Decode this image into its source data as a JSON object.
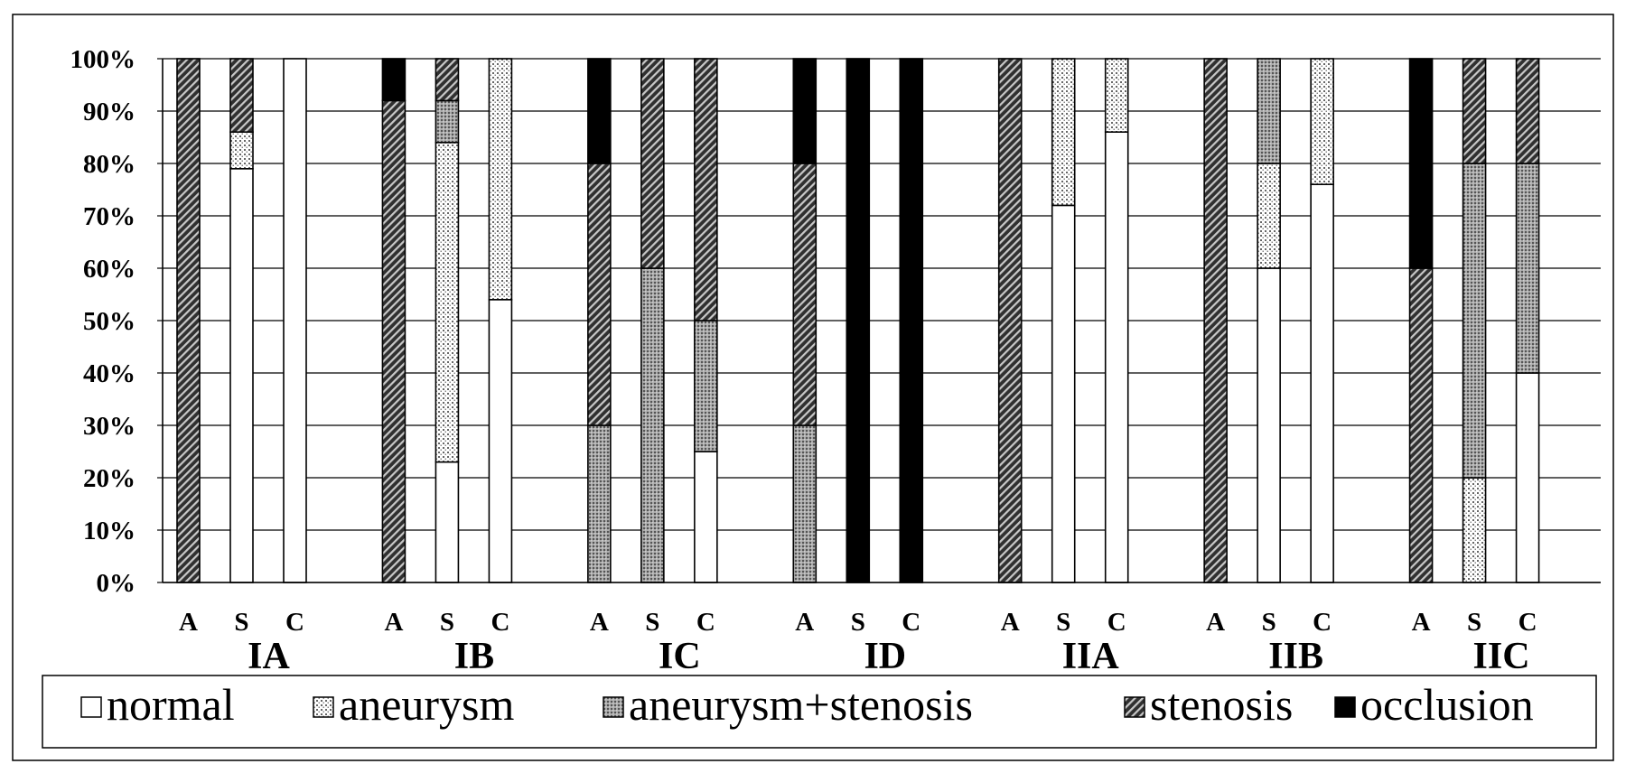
{
  "chart_data": {
    "type": "bar",
    "stacked": true,
    "percent": true,
    "yticks": [
      "0%",
      "10%",
      "20%",
      "30%",
      "40%",
      "50%",
      "60%",
      "70%",
      "80%",
      "90%",
      "100%"
    ],
    "ylim": [
      0,
      100
    ],
    "grid": true,
    "legend_position": "bottom",
    "groups": [
      "IA",
      "IB",
      "IC",
      "ID",
      "IIA",
      "IIB",
      "IIC"
    ],
    "subcategories": [
      "A",
      "S",
      "C"
    ],
    "categories": [
      "IA-A",
      "IA-S",
      "IA-C",
      "IB-A",
      "IB-S",
      "IB-C",
      "IC-A",
      "IC-S",
      "IC-C",
      "ID-A",
      "ID-S",
      "ID-C",
      "IIA-A",
      "IIA-S",
      "IIA-C",
      "IIB-A",
      "IIB-S",
      "IIB-C",
      "IIC-A",
      "IIC-S",
      "IIC-C"
    ],
    "series": [
      {
        "name": "normal",
        "pattern": "white",
        "values": [
          0,
          79,
          100,
          0,
          23,
          54,
          0,
          0,
          25,
          0,
          0,
          0,
          0,
          72,
          86,
          0,
          60,
          76,
          0,
          0,
          40
        ]
      },
      {
        "name": "aneurysm",
        "pattern": "light-dots",
        "values": [
          0,
          7,
          0,
          0,
          61,
          46,
          0,
          0,
          0,
          0,
          0,
          0,
          0,
          28,
          14,
          0,
          20,
          24,
          0,
          20,
          0
        ]
      },
      {
        "name": "aneurysm+stenosis",
        "pattern": "gray-dots",
        "values": [
          0,
          0,
          0,
          0,
          8,
          0,
          30,
          60,
          25,
          30,
          0,
          0,
          0,
          0,
          0,
          0,
          20,
          0,
          0,
          60,
          40
        ]
      },
      {
        "name": "stenosis",
        "pattern": "dark-diagonal",
        "values": [
          100,
          14,
          0,
          92,
          8,
          0,
          50,
          40,
          50,
          50,
          0,
          0,
          100,
          0,
          0,
          100,
          0,
          0,
          60,
          20,
          20
        ]
      },
      {
        "name": "occlusion",
        "pattern": "black",
        "values": [
          0,
          0,
          0,
          8,
          0,
          0,
          20,
          0,
          0,
          20,
          100,
          100,
          0,
          0,
          0,
          0,
          0,
          0,
          40,
          0,
          0
        ]
      }
    ]
  }
}
